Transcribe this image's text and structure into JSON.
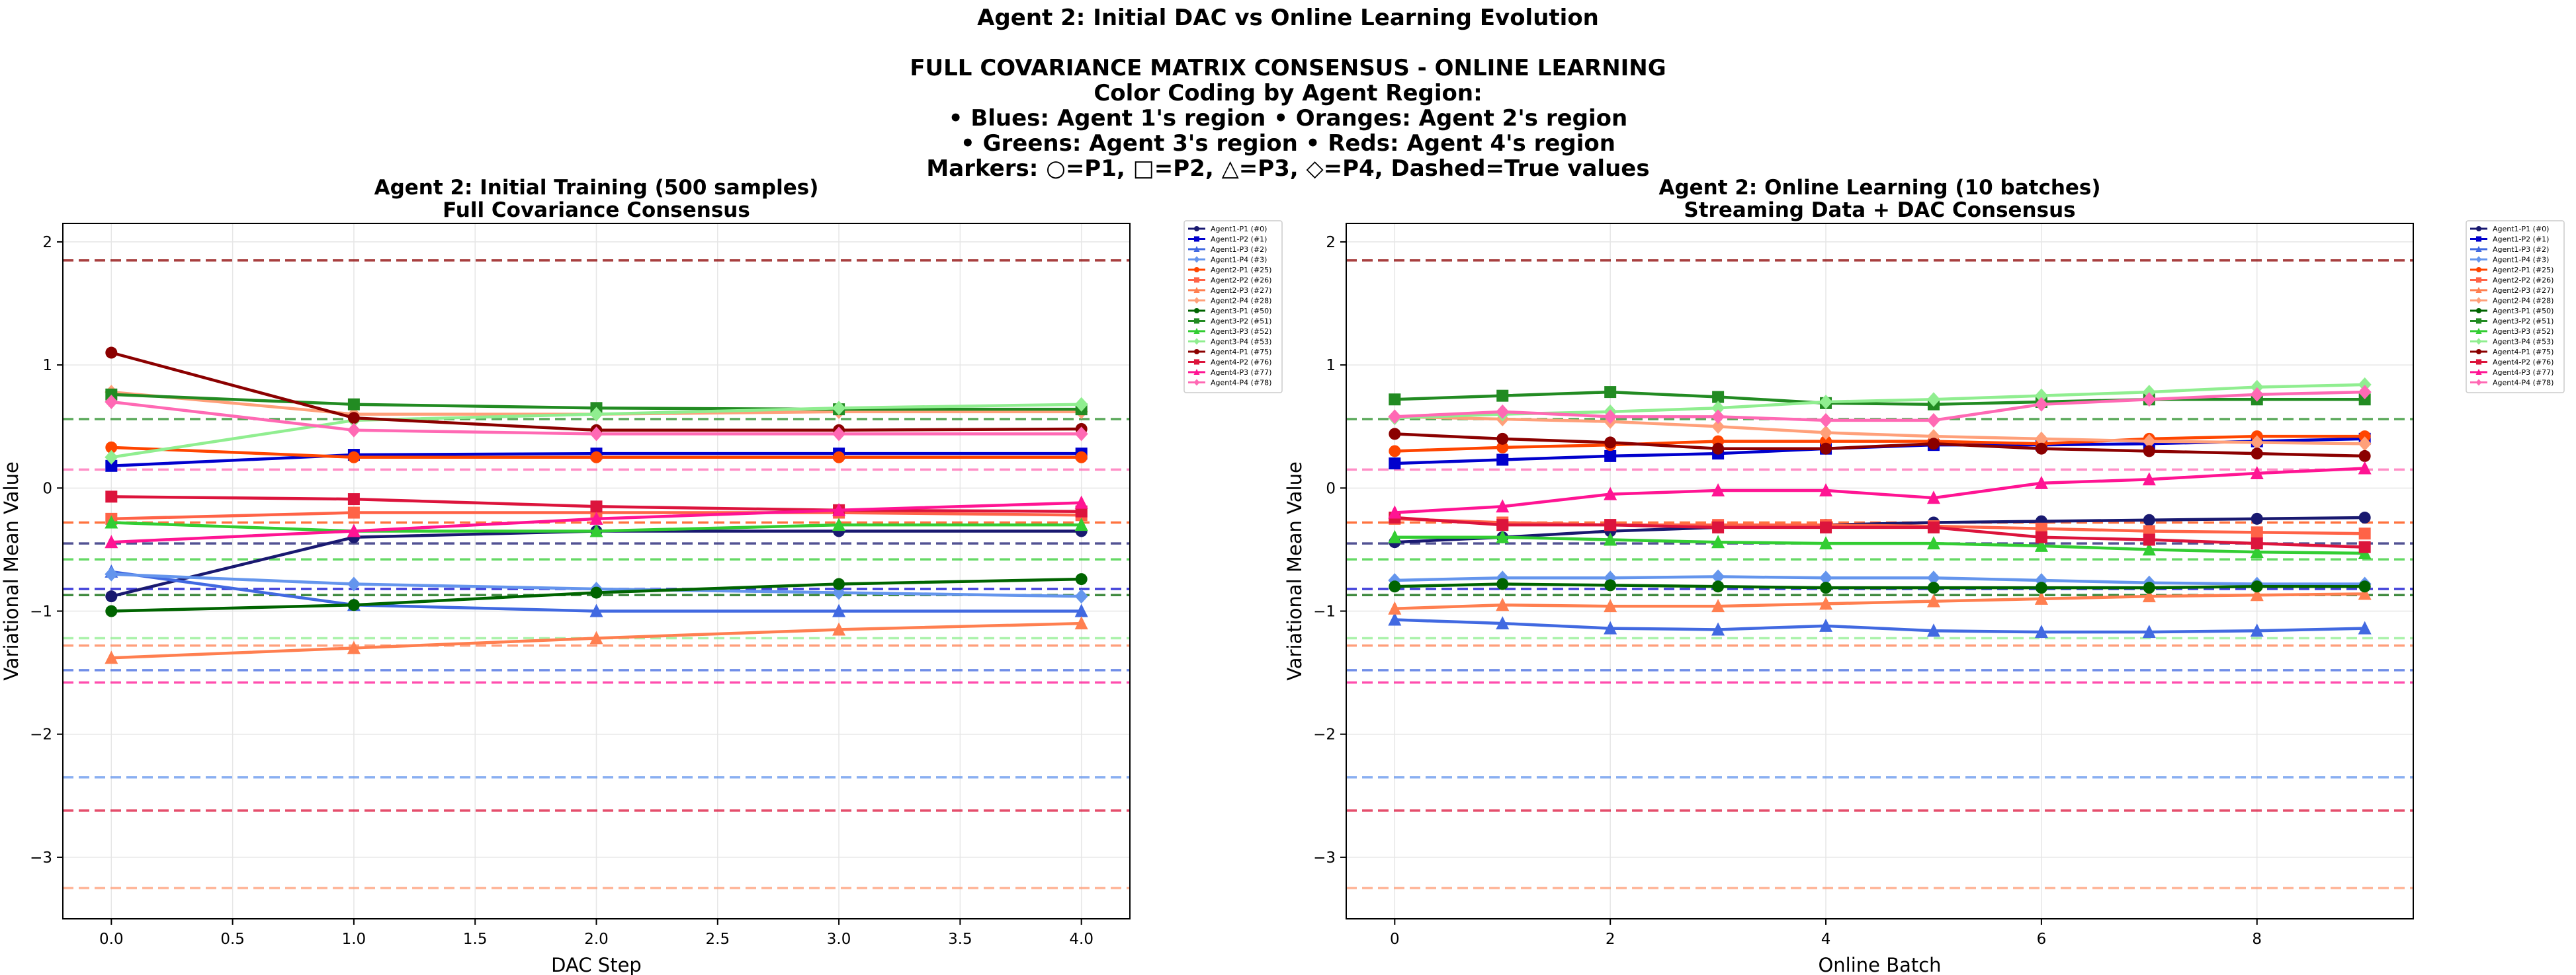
{
  "figure": {
    "suptitle_lines": [
      "Agent 2: Initial DAC vs Online Learning Evolution",
      "",
      "FULL COVARIANCE MATRIX CONSENSUS - ONLINE LEARNING",
      "Color Coding by Agent Region:",
      "• Blues: Agent 1's region  • Oranges: Agent 2's region",
      "• Greens: Agent 3's region • Reds: Agent 4's region",
      "Markers: ○=P1, □=P2, △=P3, ◇=P4, Dashed=True values"
    ]
  },
  "chart_data": [
    {
      "type": "line",
      "title": "Agent 2: Initial Training (500 samples)",
      "subtitle": "Full Covariance Consensus",
      "xlabel": "DAC Step",
      "ylabel": "Variational Mean Value",
      "xlim": [
        -0.2,
        4.2
      ],
      "ylim": [
        -3.5,
        2.15
      ],
      "xticks": [
        0.0,
        0.5,
        1.0,
        1.5,
        2.0,
        2.5,
        3.0,
        3.5,
        4.0
      ],
      "xtick_labels": [
        "0.0",
        "0.5",
        "1.0",
        "1.5",
        "2.0",
        "2.5",
        "3.0",
        "3.5",
        "4.0"
      ],
      "yticks": [
        -3,
        -2,
        -1,
        0,
        1,
        2
      ],
      "ytick_labels": [
        "−3",
        "−2",
        "−1",
        "0",
        "1",
        "2"
      ],
      "grid": true,
      "legend": "outside-right",
      "x": [
        0,
        1,
        2,
        3,
        4
      ],
      "series": [
        {
          "name": "Agent1-P1 (#0)",
          "color": "#191970",
          "marker": "circle",
          "values": [
            -0.88,
            -0.4,
            -0.35,
            -0.35,
            -0.35
          ]
        },
        {
          "name": "Agent1-P2 (#1)",
          "color": "#0000cd",
          "marker": "square",
          "values": [
            0.18,
            0.27,
            0.28,
            0.28,
            0.28
          ]
        },
        {
          "name": "Agent1-P3 (#2)",
          "color": "#4169e1",
          "marker": "triangle",
          "values": [
            -0.68,
            -0.95,
            -1.0,
            -1.0,
            -1.0
          ]
        },
        {
          "name": "Agent1-P4 (#3)",
          "color": "#6495ed",
          "marker": "diamond",
          "values": [
            -0.7,
            -0.78,
            -0.82,
            -0.85,
            -0.88
          ]
        },
        {
          "name": "Agent2-P1 (#25)",
          "color": "#ff4500",
          "marker": "circle",
          "values": [
            0.33,
            0.25,
            0.25,
            0.25,
            0.25
          ]
        },
        {
          "name": "Agent2-P2 (#26)",
          "color": "#ff6347",
          "marker": "square",
          "values": [
            -0.25,
            -0.2,
            -0.2,
            -0.2,
            -0.22
          ]
        },
        {
          "name": "Agent2-P3 (#27)",
          "color": "#ff7f50",
          "marker": "triangle",
          "values": [
            -1.38,
            -1.3,
            -1.22,
            -1.15,
            -1.1
          ]
        },
        {
          "name": "Agent2-P4 (#28)",
          "color": "#ffa07a",
          "marker": "diamond",
          "values": [
            0.78,
            0.6,
            0.6,
            0.62,
            0.62
          ]
        },
        {
          "name": "Agent3-P1 (#50)",
          "color": "#006400",
          "marker": "circle",
          "values": [
            -1.0,
            -0.95,
            -0.85,
            -0.78,
            -0.74
          ]
        },
        {
          "name": "Agent3-P2 (#51)",
          "color": "#228b22",
          "marker": "square",
          "values": [
            0.76,
            0.68,
            0.65,
            0.64,
            0.64
          ]
        },
        {
          "name": "Agent3-P3 (#52)",
          "color": "#32cd32",
          "marker": "triangle",
          "values": [
            -0.28,
            -0.35,
            -0.35,
            -0.3,
            -0.3
          ]
        },
        {
          "name": "Agent3-P4 (#53)",
          "color": "#90ee90",
          "marker": "diamond",
          "values": [
            0.25,
            0.55,
            0.6,
            0.65,
            0.68
          ]
        },
        {
          "name": "Agent4-P1 (#75)",
          "color": "#8b0000",
          "marker": "circle",
          "values": [
            1.1,
            0.57,
            0.47,
            0.47,
            0.48
          ]
        },
        {
          "name": "Agent4-P2 (#76)",
          "color": "#dc143c",
          "marker": "square",
          "values": [
            -0.07,
            -0.09,
            -0.15,
            -0.18,
            -0.19
          ]
        },
        {
          "name": "Agent4-P3 (#77)",
          "color": "#ff1493",
          "marker": "triangle",
          "values": [
            -0.44,
            -0.35,
            -0.25,
            -0.18,
            -0.12
          ]
        },
        {
          "name": "Agent4-P4 (#78)",
          "color": "#ff69b4",
          "marker": "diamond",
          "values": [
            0.7,
            0.47,
            0.44,
            0.44,
            0.44
          ]
        }
      ],
      "true_values": [
        {
          "color": "#191970",
          "value": -0.45
        },
        {
          "color": "#0000cd",
          "value": -0.82
        },
        {
          "color": "#4169e1",
          "value": -1.48
        },
        {
          "color": "#6495ed",
          "value": -2.35
        },
        {
          "color": "#ff4500",
          "value": -0.28
        },
        {
          "color": "#ff7f50",
          "value": -1.28
        },
        {
          "color": "#ffa07a",
          "value": -3.25
        },
        {
          "color": "#006400",
          "value": -0.87
        },
        {
          "color": "#228b22",
          "value": 0.56
        },
        {
          "color": "#32cd32",
          "value": -0.58
        },
        {
          "color": "#90ee90",
          "value": -1.22
        },
        {
          "color": "#8b0000",
          "value": 1.85
        },
        {
          "color": "#dc143c",
          "value": -2.62
        },
        {
          "color": "#ff1493",
          "value": -1.58
        },
        {
          "color": "#ff69b4",
          "value": 0.15
        }
      ]
    },
    {
      "type": "line",
      "title": "Agent 2: Online Learning (10 batches)",
      "subtitle": "Streaming Data + DAC Consensus",
      "xlabel": "Online Batch",
      "ylabel": "Variational Mean Value",
      "xlim": [
        -0.45,
        9.45
      ],
      "ylim": [
        -3.5,
        2.15
      ],
      "xticks": [
        0,
        2,
        4,
        6,
        8
      ],
      "xtick_labels": [
        "0",
        "2",
        "4",
        "6",
        "8"
      ],
      "yticks": [
        -3,
        -2,
        -1,
        0,
        1,
        2
      ],
      "ytick_labels": [
        "−3",
        "−2",
        "−1",
        "0",
        "1",
        "2"
      ],
      "grid": true,
      "legend": "outside-right",
      "x": [
        0,
        1,
        2,
        3,
        4,
        5,
        6,
        7,
        8,
        9
      ],
      "series": [
        {
          "name": "Agent1-P1 (#0)",
          "color": "#191970",
          "marker": "circle",
          "values": [
            -0.44,
            -0.4,
            -0.35,
            -0.32,
            -0.3,
            -0.28,
            -0.27,
            -0.26,
            -0.25,
            -0.24
          ]
        },
        {
          "name": "Agent1-P2 (#1)",
          "color": "#0000cd",
          "marker": "square",
          "values": [
            0.2,
            0.23,
            0.26,
            0.28,
            0.32,
            0.35,
            0.35,
            0.36,
            0.38,
            0.4
          ]
        },
        {
          "name": "Agent1-P3 (#2)",
          "color": "#4169e1",
          "marker": "triangle",
          "values": [
            -1.07,
            -1.1,
            -1.14,
            -1.15,
            -1.12,
            -1.16,
            -1.17,
            -1.17,
            -1.16,
            -1.14
          ]
        },
        {
          "name": "Agent1-P4 (#3)",
          "color": "#6495ed",
          "marker": "diamond",
          "values": [
            -0.75,
            -0.73,
            -0.73,
            -0.72,
            -0.73,
            -0.73,
            -0.75,
            -0.77,
            -0.78,
            -0.78
          ]
        },
        {
          "name": "Agent2-P1 (#25)",
          "color": "#ff4500",
          "marker": "circle",
          "values": [
            0.3,
            0.33,
            0.35,
            0.38,
            0.38,
            0.38,
            0.36,
            0.4,
            0.42,
            0.42
          ]
        },
        {
          "name": "Agent2-P2 (#26)",
          "color": "#ff6347",
          "marker": "square",
          "values": [
            -0.25,
            -0.28,
            -0.3,
            -0.3,
            -0.3,
            -0.31,
            -0.33,
            -0.35,
            -0.36,
            -0.37
          ]
        },
        {
          "name": "Agent2-P3 (#27)",
          "color": "#ff7f50",
          "marker": "triangle",
          "values": [
            -0.98,
            -0.95,
            -0.96,
            -0.96,
            -0.94,
            -0.92,
            -0.9,
            -0.88,
            -0.87,
            -0.86
          ]
        },
        {
          "name": "Agent2-P4 (#28)",
          "color": "#ffa07a",
          "marker": "diamond",
          "values": [
            0.58,
            0.56,
            0.54,
            0.5,
            0.45,
            0.42,
            0.4,
            0.38,
            0.37,
            0.36
          ]
        },
        {
          "name": "Agent3-P1 (#50)",
          "color": "#006400",
          "marker": "circle",
          "values": [
            -0.8,
            -0.78,
            -0.79,
            -0.8,
            -0.81,
            -0.81,
            -0.81,
            -0.81,
            -0.8,
            -0.8
          ]
        },
        {
          "name": "Agent3-P2 (#51)",
          "color": "#228b22",
          "marker": "square",
          "values": [
            0.72,
            0.75,
            0.78,
            0.74,
            0.69,
            0.68,
            0.7,
            0.72,
            0.72,
            0.72
          ]
        },
        {
          "name": "Agent3-P3 (#52)",
          "color": "#32cd32",
          "marker": "triangle",
          "values": [
            -0.4,
            -0.4,
            -0.42,
            -0.44,
            -0.45,
            -0.45,
            -0.47,
            -0.5,
            -0.52,
            -0.53
          ]
        },
        {
          "name": "Agent3-P4 (#53)",
          "color": "#90ee90",
          "marker": "diamond",
          "values": [
            0.57,
            0.6,
            0.62,
            0.65,
            0.7,
            0.72,
            0.75,
            0.78,
            0.82,
            0.84
          ]
        },
        {
          "name": "Agent4-P1 (#75)",
          "color": "#8b0000",
          "marker": "circle",
          "values": [
            0.44,
            0.4,
            0.37,
            0.32,
            0.32,
            0.36,
            0.32,
            0.3,
            0.28,
            0.26
          ]
        },
        {
          "name": "Agent4-P2 (#76)",
          "color": "#dc143c",
          "marker": "square",
          "values": [
            -0.24,
            -0.3,
            -0.3,
            -0.32,
            -0.32,
            -0.32,
            -0.4,
            -0.42,
            -0.45,
            -0.48
          ]
        },
        {
          "name": "Agent4-P3 (#77)",
          "color": "#ff1493",
          "marker": "triangle",
          "values": [
            -0.2,
            -0.15,
            -0.05,
            -0.02,
            -0.02,
            -0.08,
            0.04,
            0.07,
            0.12,
            0.16
          ]
        },
        {
          "name": "Agent4-P4 (#78)",
          "color": "#ff69b4",
          "marker": "diamond",
          "values": [
            0.58,
            0.62,
            0.58,
            0.58,
            0.55,
            0.55,
            0.68,
            0.72,
            0.76,
            0.78
          ]
        }
      ],
      "true_values": [
        {
          "color": "#191970",
          "value": -0.45
        },
        {
          "color": "#0000cd",
          "value": -0.82
        },
        {
          "color": "#4169e1",
          "value": -1.48
        },
        {
          "color": "#6495ed",
          "value": -2.35
        },
        {
          "color": "#ff4500",
          "value": -0.28
        },
        {
          "color": "#ff7f50",
          "value": -1.28
        },
        {
          "color": "#ffa07a",
          "value": -3.25
        },
        {
          "color": "#006400",
          "value": -0.87
        },
        {
          "color": "#228b22",
          "value": 0.56
        },
        {
          "color": "#32cd32",
          "value": -0.58
        },
        {
          "color": "#90ee90",
          "value": -1.22
        },
        {
          "color": "#8b0000",
          "value": 1.85
        },
        {
          "color": "#dc143c",
          "value": -2.62
        },
        {
          "color": "#ff1493",
          "value": -1.58
        },
        {
          "color": "#ff69b4",
          "value": 0.15
        }
      ]
    }
  ]
}
